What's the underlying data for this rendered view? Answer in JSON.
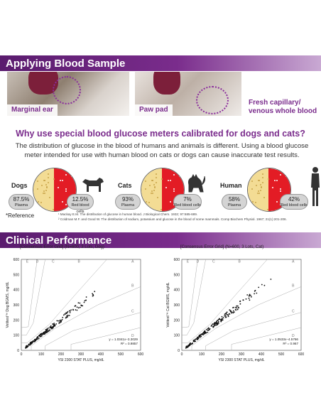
{
  "sections": {
    "applying": "Applying Blood Sample",
    "clinical": "Clinical Performance"
  },
  "photos": {
    "ear": "Marginal ear",
    "paw": "Paw pad",
    "fresh": "Fresh capillary/ venous whole blood"
  },
  "why": {
    "title": "Why use special blood glucose meters calibrated for dogs and cats?",
    "body": "The distribution of glucose in the blood of humans and animals is different. Using a blood glucose meter intended for use with human blood on cats or dogs can cause inaccurate test results."
  },
  "distribution": [
    {
      "animal": "Dogs",
      "plasma_pct": "87.5%",
      "plasma_label": "Plasma",
      "rbc_pct": "12.5%",
      "rbc_label": "Red blood cells",
      "plasma_fraction": 0.5
    },
    {
      "animal": "Cats",
      "plasma_pct": "93%",
      "plasma_label": "Plasma",
      "rbc_pct": "7%",
      "rbc_label": "Red blood cells",
      "plasma_fraction": 0.5
    },
    {
      "animal": "Human",
      "plasma_pct": "58%",
      "plasma_label": "Plasma",
      "rbc_pct": "42%",
      "rbc_label": "Red blood cells",
      "plasma_fraction": 0.5
    }
  ],
  "reference": {
    "label": "*Reference",
    "refs": [
      "¹ Mackay E.M. The distribution of glucose in human blood. J Biological Chem. 1932; 97:685-689.",
      "² Coldman M.F. and Good W. The distribution of sodium, potassium and glucose in the blood of some mammals. Comp Biochem Physiol. 1967; 21(1):201-206."
    ]
  },
  "colors": {
    "purple": "#7a2c8c",
    "plasma": "#f3dc94",
    "rbc": "#e31c25"
  },
  "chart_data": [
    {
      "type": "scatter",
      "title": "[Consensus Error Grid] (N=600, 3 Lots, Dog)",
      "xlabel": "YSI 2300 STAT PLUS, mg/dL",
      "ylabel": "Vetitest™ Dog BGMS, mg/dL",
      "xlim": [
        0,
        600
      ],
      "ylim": [
        0,
        600
      ],
      "xticks": [
        "0",
        "100",
        "200",
        "300",
        "400",
        "500",
        "600"
      ],
      "yticks": [
        "0",
        "100",
        "200",
        "300",
        "400",
        "500",
        "600"
      ],
      "zones": [
        "E",
        "D",
        "C",
        "B",
        "A",
        "B",
        "C",
        "D"
      ],
      "equation": "y = 1.0341x−3.3029",
      "r2": "R² = 0.9857",
      "slope": 1.0341,
      "intercept": -3.3029,
      "x_range": [
        20,
        385
      ]
    },
    {
      "type": "scatter",
      "title": "[Consensus Error Grid] (N=600, 3 Lots, Cat)",
      "xlabel": "YSI 2300 STAT PLUS, mg/dL",
      "ylabel": "Vetitest™ Cat BGMS, mg/dL",
      "xlim": [
        0,
        600
      ],
      "ylim": [
        0,
        600
      ],
      "xticks": [
        "0",
        "100",
        "200",
        "300",
        "400",
        "500",
        "600"
      ],
      "yticks": [
        "0",
        "100",
        "200",
        "300",
        "400",
        "500",
        "600"
      ],
      "zones": [
        "E",
        "D",
        "C",
        "B",
        "A",
        "B",
        "C",
        "D"
      ],
      "equation": "y = 1.0533x−4.5766",
      "r2": "R² = 0.967",
      "slope": 1.0533,
      "intercept": -4.5766,
      "x_range": [
        20,
        470
      ]
    }
  ]
}
